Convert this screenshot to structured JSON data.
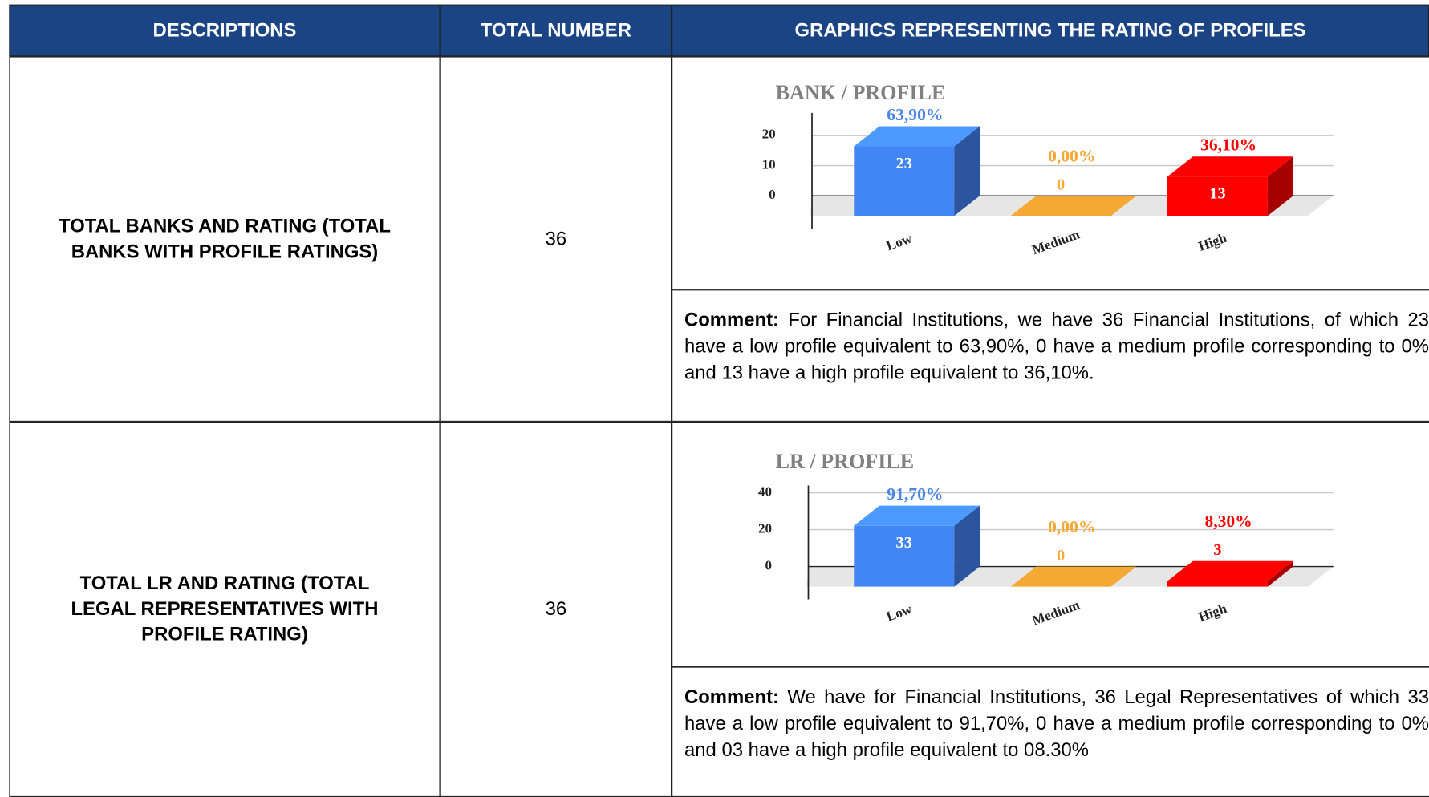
{
  "header": [
    "DESCRIPTIONS",
    "TOTAL NUMBER",
    "GRAPHICS REPRESENTING THE RATING OF PROFILES"
  ],
  "rows": [
    {
      "description": "TOTAL BANKS AND RATING (TOTAL BANKS WITH PROFILE RATINGS)",
      "total": 36,
      "chart": {
        "type": "bar",
        "title": "BANK / PROFILE",
        "categories": [
          "Low",
          "Medium",
          "High"
        ],
        "values": [
          23,
          0,
          13
        ],
        "percent_labels": [
          "63,90%",
          "0,00%",
          "36,10%"
        ],
        "colors": [
          "#4285f4",
          "#f5a833",
          "#ff0000"
        ],
        "ylim": [
          0,
          25
        ],
        "yticks": [
          0,
          10,
          20
        ],
        "grid": true
      },
      "comment_label": "Comment:",
      "comment": "For Financial Institutions, we have 36 Financial Institutions, of which 23 have a low profile equivalent to 63,90%, 0 have a medium profile corresponding to 0% and 13 have a high profile equivalent to 36,10%."
    },
    {
      "description": "TOTAL LR AND RATING (TOTAL LEGAL REPRESENTATIVES WITH PROFILE RATING)",
      "total": 36,
      "chart": {
        "type": "bar",
        "title": "LR / PROFILE",
        "categories": [
          "Low",
          "Medium",
          "High"
        ],
        "values": [
          33,
          0,
          3
        ],
        "percent_labels": [
          "91,70%",
          "0,00%",
          "8,30%"
        ],
        "colors": [
          "#4285f4",
          "#f5a833",
          "#ff0000"
        ],
        "ylim": [
          0,
          40
        ],
        "yticks": [
          0,
          20,
          40
        ],
        "grid": true
      },
      "comment_label": "Comment:",
      "comment": "We have for Financial Institutions, 36 Legal Representatives of which 33 have a low profile equivalent to 91,70%, 0 have a medium profile corresponding to 0% and 03 have a high profile equivalent to 08.30%"
    }
  ]
}
